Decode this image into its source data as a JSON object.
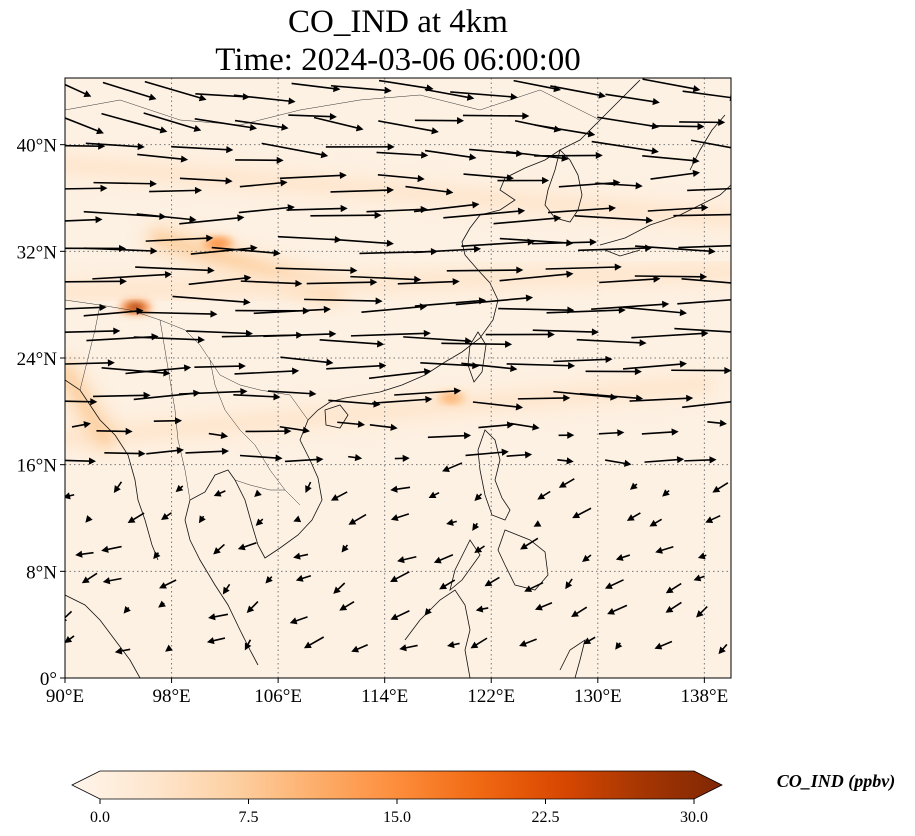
{
  "title": {
    "line1": "CO_IND at 4km",
    "line2": "Time: 2024-03-06 06:00:00"
  },
  "map": {
    "extent": {
      "lon_min": 90,
      "lon_max": 140,
      "lat_min": 0,
      "lat_max": 45
    },
    "lon_ticks": [
      {
        "value": 90,
        "label": "90°E"
      },
      {
        "value": 98,
        "label": "98°E"
      },
      {
        "value": 106,
        "label": "106°E"
      },
      {
        "value": 114,
        "label": "114°E"
      },
      {
        "value": 122,
        "label": "122°E"
      },
      {
        "value": 130,
        "label": "130°E"
      },
      {
        "value": 138,
        "label": "138°E"
      }
    ],
    "lat_ticks": [
      {
        "value": 0,
        "label": "0°"
      },
      {
        "value": 8,
        "label": "8°N"
      },
      {
        "value": 16,
        "label": "16°N"
      },
      {
        "value": 24,
        "label": "24°N"
      },
      {
        "value": 32,
        "label": "32°N"
      },
      {
        "value": 40,
        "label": "40°N"
      }
    ],
    "background_color": "#fdf1e3",
    "gridline_color": "#777777",
    "wind_arrow_color": "#000000"
  },
  "colorbar": {
    "title": "CO_IND (ppbv)",
    "min": 0.0,
    "max": 30.0,
    "ticks": [
      "0.0",
      "7.5",
      "15.0",
      "22.5",
      "30.0"
    ],
    "colors": [
      "#fff5eb",
      "#fee6ce",
      "#fdd0a2",
      "#fdae6b",
      "#fd8d3c",
      "#f16913",
      "#d94801",
      "#a63603",
      "#7f2704"
    ]
  },
  "plumes": [
    {
      "name": "north-china-band",
      "lon_start": 90,
      "lat_start": 38.5,
      "lon_end": 140,
      "lat_end": 34.5,
      "value": 5
    },
    {
      "name": "sichuan-band",
      "lon_start": 97,
      "lat_start": 33,
      "lon_end": 110,
      "lat_end": 29,
      "value": 9
    },
    {
      "name": "sichuan-hotspot",
      "lon": 101.5,
      "lat": 32.6,
      "value": 16
    },
    {
      "name": "central-band",
      "lon_start": 90,
      "lat_start": 29,
      "lon_end": 140,
      "lat_end": 30.5,
      "value": 5
    },
    {
      "name": "tibet-hotspot",
      "lon": 95.3,
      "lat": 27.8,
      "value": 28
    },
    {
      "name": "south-band",
      "lon_start": 90,
      "lat_start": 18,
      "lon_end": 138,
      "lat_end": 22,
      "value": 4
    },
    {
      "name": "luzon-strait-hotspot",
      "lon": 119,
      "lat": 21,
      "value": 11
    },
    {
      "name": "myanmar-band",
      "lon_start": 90,
      "lat_start": 23,
      "lon_end": 93,
      "lat_end": 18,
      "value": 6
    }
  ]
}
